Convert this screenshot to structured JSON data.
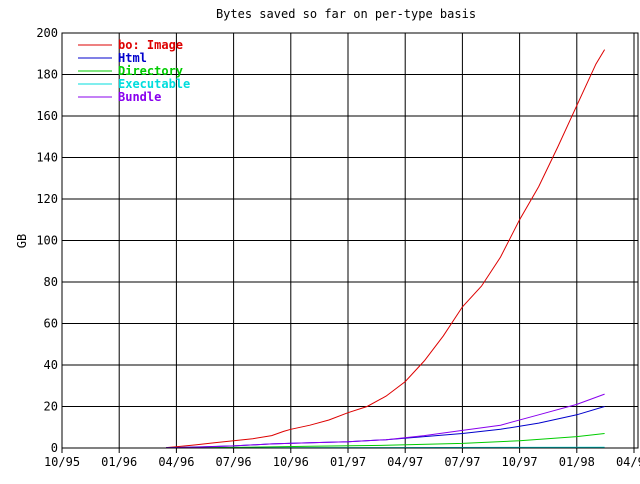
{
  "chart_data": {
    "type": "line",
    "title": "Bytes saved so far on per-type basis",
    "xlabel": "",
    "ylabel": "GB",
    "ylim": [
      0,
      200
    ],
    "yticks": [
      0,
      20,
      40,
      60,
      80,
      100,
      120,
      140,
      160,
      180,
      200
    ],
    "xticks": [
      "10/95",
      "01/96",
      "04/96",
      "07/96",
      "10/96",
      "01/97",
      "04/97",
      "07/97",
      "10/97",
      "01/98",
      "04/98"
    ],
    "grid": true,
    "legend_position": "top-left",
    "series": [
      {
        "name": "bo: Image",
        "color": "#dd0000",
        "points": [
          [
            "1996-03-15",
            0.2
          ],
          [
            "1996-04-01",
            0.6
          ],
          [
            "1996-05-01",
            1.5
          ],
          [
            "1996-06-01",
            2.5
          ],
          [
            "1996-07-01",
            3.5
          ],
          [
            "1996-08-01",
            4.5
          ],
          [
            "1996-09-01",
            6.0
          ],
          [
            "1996-09-20",
            8.0
          ],
          [
            "1996-10-01",
            9.0
          ],
          [
            "1996-11-01",
            11.0
          ],
          [
            "1996-12-01",
            13.5
          ],
          [
            "1997-01-01",
            17.0
          ],
          [
            "1997-02-01",
            20.0
          ],
          [
            "1997-03-01",
            25.0
          ],
          [
            "1997-04-01",
            32.0
          ],
          [
            "1997-05-01",
            42.0
          ],
          [
            "1997-06-01",
            54.0
          ],
          [
            "1997-07-01",
            68.0
          ],
          [
            "1997-08-01",
            78.0
          ],
          [
            "1997-09-01",
            92.0
          ],
          [
            "1997-10-01",
            110.0
          ],
          [
            "1997-11-01",
            126.0
          ],
          [
            "1997-12-01",
            145.0
          ],
          [
            "1998-01-01",
            165.0
          ],
          [
            "1998-02-01",
            185.0
          ],
          [
            "1998-02-15",
            192.0
          ]
        ]
      },
      {
        "name": "Html",
        "color": "#0000cc",
        "points": [
          [
            "1996-03-15",
            0.1
          ],
          [
            "1996-05-01",
            0.5
          ],
          [
            "1996-07-01",
            1.0
          ],
          [
            "1996-09-01",
            2.0
          ],
          [
            "1996-11-01",
            2.5
          ],
          [
            "1997-01-01",
            3.0
          ],
          [
            "1997-03-01",
            4.0
          ],
          [
            "1997-05-01",
            5.5
          ],
          [
            "1997-07-01",
            7.0
          ],
          [
            "1997-09-01",
            9.0
          ],
          [
            "1997-11-01",
            12.0
          ],
          [
            "1998-01-01",
            16.0
          ],
          [
            "1998-02-15",
            20.0
          ]
        ]
      },
      {
        "name": "Directory",
        "color": "#00cc00",
        "points": [
          [
            "1996-03-15",
            0.0
          ],
          [
            "1996-07-01",
            0.3
          ],
          [
            "1996-11-01",
            0.8
          ],
          [
            "1997-03-01",
            1.3
          ],
          [
            "1997-07-01",
            2.2
          ],
          [
            "1997-10-01",
            3.5
          ],
          [
            "1998-01-01",
            5.5
          ],
          [
            "1998-02-15",
            7.0
          ]
        ]
      },
      {
        "name": "Executable",
        "color": "#00dddd",
        "points": [
          [
            "1996-03-15",
            0.0
          ],
          [
            "1996-09-01",
            0.1
          ],
          [
            "1997-03-01",
            0.2
          ],
          [
            "1997-09-01",
            0.3
          ],
          [
            "1998-02-15",
            0.4
          ]
        ]
      },
      {
        "name": "Bundle",
        "color": "#8800ee",
        "points": [
          [
            "1996-03-15",
            0.1
          ],
          [
            "1996-05-01",
            0.4
          ],
          [
            "1996-07-01",
            1.0
          ],
          [
            "1996-09-01",
            2.0
          ],
          [
            "1996-11-01",
            2.5
          ],
          [
            "1997-01-01",
            3.0
          ],
          [
            "1997-03-01",
            4.0
          ],
          [
            "1997-05-01",
            6.0
          ],
          [
            "1997-07-01",
            8.5
          ],
          [
            "1997-09-01",
            11.0
          ],
          [
            "1997-11-01",
            16.0
          ],
          [
            "1998-01-01",
            21.0
          ],
          [
            "1998-02-15",
            26.0
          ]
        ]
      }
    ]
  }
}
